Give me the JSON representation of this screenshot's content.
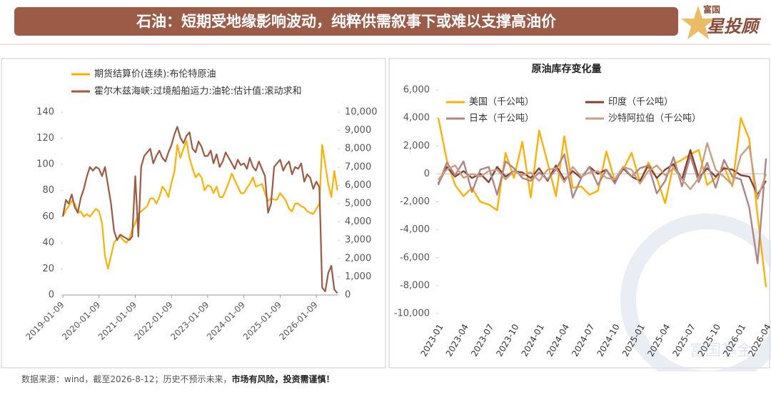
{
  "header": {
    "title": "石油：短期受地缘影响波动，纯粹供需叙事下或难以支撑高油价",
    "logo_small": "富国",
    "logo_big": "星投顾"
  },
  "chart_data": [
    {
      "type": "line",
      "x": [
        "2019-01-09",
        "2019-02-09",
        "2019-03-09",
        "2019-04-09",
        "2019-05-09",
        "2019-06-09",
        "2019-07-09",
        "2019-08-09",
        "2019-09-09",
        "2019-10-09",
        "2019-11-09",
        "2019-12-09",
        "2020-01-09",
        "2020-02-09",
        "2020-03-09",
        "2020-04-09",
        "2020-05-09",
        "2020-06-09",
        "2020-07-09",
        "2020-08-09",
        "2020-09-09",
        "2020-10-09",
        "2020-11-09",
        "2020-12-09",
        "2021-01-09",
        "2021-02-09",
        "2021-03-09",
        "2021-04-09",
        "2021-05-09",
        "2021-06-09",
        "2021-07-09",
        "2021-08-09",
        "2021-09-09",
        "2021-10-09",
        "2021-11-09",
        "2021-12-09",
        "2022-01-09",
        "2022-02-09",
        "2022-03-09",
        "2022-04-09",
        "2022-05-09",
        "2022-06-09",
        "2022-07-09",
        "2022-08-09",
        "2022-09-09",
        "2022-10-09",
        "2022-11-09",
        "2022-12-09",
        "2023-01-09",
        "2023-02-09",
        "2023-03-09",
        "2023-04-09",
        "2023-05-09",
        "2023-06-09",
        "2023-07-09",
        "2023-08-09",
        "2023-09-09",
        "2023-10-09",
        "2023-11-09",
        "2023-12-09",
        "2024-01-09",
        "2024-02-09",
        "2024-03-09",
        "2024-04-09",
        "2024-05-09",
        "2024-06-09",
        "2024-07-09",
        "2024-08-09",
        "2024-09-09",
        "2024-10-09",
        "2024-11-09",
        "2024-12-09",
        "2025-01-09",
        "2025-02-09",
        "2025-03-09",
        "2025-04-09",
        "2025-05-09",
        "2025-06-09",
        "2025-07-09",
        "2025-08-09",
        "2025-09-09",
        "2025-10-09",
        "2025-11-09",
        "2025-12-09",
        "2026-01-09",
        "2026-02-09",
        "2026-03-09",
        "2026-04-09",
        "2026-05-09",
        "2026-06-09",
        "2026-07-09",
        "2026-08-09"
      ],
      "xlim": [
        "2019-01-09",
        "2026-08-12"
      ],
      "xticks": [
        "2019-01-09",
        "2020-01-09",
        "2021-01-09",
        "2022-01-09",
        "2023-01-09",
        "2024-01-09",
        "2025-01-09",
        "2026-01-09"
      ],
      "ylim": [
        0,
        140
      ],
      "yticks": [
        0,
        20,
        40,
        60,
        80,
        100,
        120,
        140
      ],
      "y2lim": [
        0,
        10000
      ],
      "y2ticks": [
        0,
        {
          "value": 1000,
          "label": "1,000"
        },
        {
          "value": 2000,
          "label": "2,000"
        },
        {
          "value": 3000,
          "label": "3,000"
        },
        {
          "value": 4000,
          "label": "4,000"
        },
        {
          "value": 5000,
          "label": "5,000"
        },
        {
          "value": 6000,
          "label": "6,000"
        },
        {
          "value": 7000,
          "label": "7,000"
        },
        {
          "value": 8000,
          "label": "8,000"
        },
        {
          "value": 9000,
          "label": "9,000"
        },
        {
          "value": 10000,
          "label": "10,000"
        }
      ],
      "series": [
        {
          "name": "期货结算价(连续):布伦特原油",
          "color": "#FFB000",
          "values": [
            60,
            65,
            68,
            72,
            70,
            63,
            64,
            60,
            62,
            60,
            63,
            66,
            64,
            55,
            30,
            20,
            30,
            40,
            43,
            45,
            42,
            40,
            43,
            50,
            55,
            62,
            64,
            66,
            68,
            74,
            74,
            70,
            75,
            83,
            80,
            75,
            86,
            95,
            115,
            105,
            112,
            118,
            105,
            97,
            90,
            93,
            90,
            80,
            84,
            83,
            78,
            83,
            75,
            75,
            80,
            86,
            93,
            88,
            83,
            78,
            78,
            82,
            85,
            90,
            83,
            84,
            85,
            78,
            72,
            74,
            73,
            73,
            78,
            75,
            72,
            66,
            64,
            70,
            70,
            68,
            67,
            64,
            63,
            62,
            66,
            70,
            115,
            100,
            85,
            75,
            95,
            80
          ]
        },
        {
          "name": "霍尔木兹海峡:过境船舶运力:油轮:估计值:滚动求和",
          "color": "#A0583F",
          "axis": "y2",
          "values": [
            4300,
            5200,
            5000,
            5500,
            4800,
            4500,
            5300,
            5800,
            6500,
            7000,
            6800,
            7000,
            6900,
            6500,
            7000,
            6000,
            5000,
            3500,
            3000,
            3300,
            3200,
            3100,
            3000,
            3200,
            6500,
            3200,
            7000,
            7600,
            7800,
            8000,
            7200,
            7600,
            7900,
            7500,
            7300,
            7800,
            8200,
            8800,
            9200,
            8600,
            8300,
            8700,
            8900,
            8000,
            7800,
            8400,
            8100,
            7600,
            7600,
            7900,
            7200,
            7700,
            7000,
            7300,
            7800,
            7500,
            7200,
            6900,
            7400,
            7100,
            7200,
            6900,
            7500,
            7000,
            6800,
            7300,
            6900,
            6500,
            4500,
            5000,
            7000,
            7200,
            7400,
            6800,
            7100,
            7300,
            6600,
            7000,
            6900,
            7200,
            6200,
            6600,
            6400,
            5800,
            6200,
            5900,
            400,
            200,
            1200,
            1600,
            300,
            100
          ]
        }
      ]
    },
    {
      "type": "line",
      "title": "原油库存变化量",
      "categories": [
        "2023-01",
        null,
        null,
        "2023-04",
        null,
        null,
        "2023-07",
        null,
        null,
        "2023-10",
        null,
        null,
        "2024-01",
        null,
        null,
        "2024-04",
        null,
        null,
        "2024-07",
        null,
        null,
        "2024-10",
        null,
        null,
        "2025-01",
        null,
        null,
        "2025-04",
        null,
        null,
        "2025-07",
        null,
        null,
        "2025-10",
        null,
        null,
        "2026-01",
        null,
        null,
        "2026-04"
      ],
      "ylim": [
        -10000,
        6000
      ],
      "yticks": [
        {
          "value": -10000,
          "label": "-10,000"
        },
        {
          "value": -8000,
          "label": "-8,000"
        },
        {
          "value": -6000,
          "label": "-6,000"
        },
        {
          "value": -4000,
          "label": "-4,000"
        },
        {
          "value": -2000,
          "label": "-2,000"
        },
        0,
        {
          "value": 2000,
          "label": "2,000"
        },
        {
          "value": 4000,
          "label": "4,000"
        },
        {
          "value": 6000,
          "label": "6,000"
        }
      ],
      "series": [
        {
          "name": "美国（千公吨）",
          "color": "#FFB000",
          "values": [
            4000,
            1000,
            -800,
            -1600,
            -1000,
            -2000,
            -2200,
            -2600,
            1500,
            -300,
            2300,
            -1700,
            3100,
            800,
            -1600,
            2700,
            -1000,
            -900,
            -1500,
            -1200,
            1600,
            -500,
            300,
            1500,
            -600,
            800,
            -300,
            -2100,
            700,
            1000,
            1400,
            1700,
            -800,
            -300,
            500,
            -900,
            4000,
            2500,
            -3000,
            -8100
          ]
        },
        {
          "name": "印度（千公吨）",
          "color": "#8B3E30",
          "values": [
            -700,
            500,
            -200,
            200,
            -300,
            0,
            -600,
            500,
            -200,
            200,
            100,
            -300,
            400,
            -500,
            600,
            -400,
            200,
            -300,
            500,
            0,
            300,
            -600,
            400,
            -200,
            -500,
            600,
            -300,
            300,
            700,
            -400,
            1700,
            -300,
            400,
            -200,
            400,
            300,
            -100,
            -200,
            -1500,
            -500
          ]
        },
        {
          "name": "日本（千公吨）",
          "color": "#B08484",
          "values": [
            -800,
            800,
            -100,
            900,
            -1300,
            300,
            500,
            -1500,
            900,
            400,
            -300,
            -500,
            100,
            -400,
            300,
            1400,
            -1700,
            -300,
            500,
            -800,
            300,
            -700,
            500,
            -200,
            400,
            600,
            -1400,
            -500,
            1200,
            -900,
            1300,
            -600,
            800,
            -1000,
            1000,
            -200,
            -400,
            -2400,
            -6400,
            1100
          ]
        },
        {
          "name": "沙特阿拉伯（千公吨）",
          "color": "#C9A07F",
          "values": [
            -400,
            300,
            600,
            -300,
            0,
            -200,
            200,
            300,
            -400,
            200,
            -100,
            100,
            -500,
            300,
            400,
            -600,
            500,
            -200,
            100,
            200,
            -300,
            -400,
            500,
            300,
            -700,
            200,
            600,
            -100,
            400,
            -400,
            -1100,
            -300,
            2200,
            300,
            -200,
            -800,
            1300,
            2000,
            -1800,
            0
          ]
        }
      ]
    }
  ],
  "watermark": "富国基金",
  "footer": {
    "source": "数据来源：wind，截至2026-8-12；历史不预示未来，",
    "warning": "市场有风险，投资需谨慎！"
  }
}
